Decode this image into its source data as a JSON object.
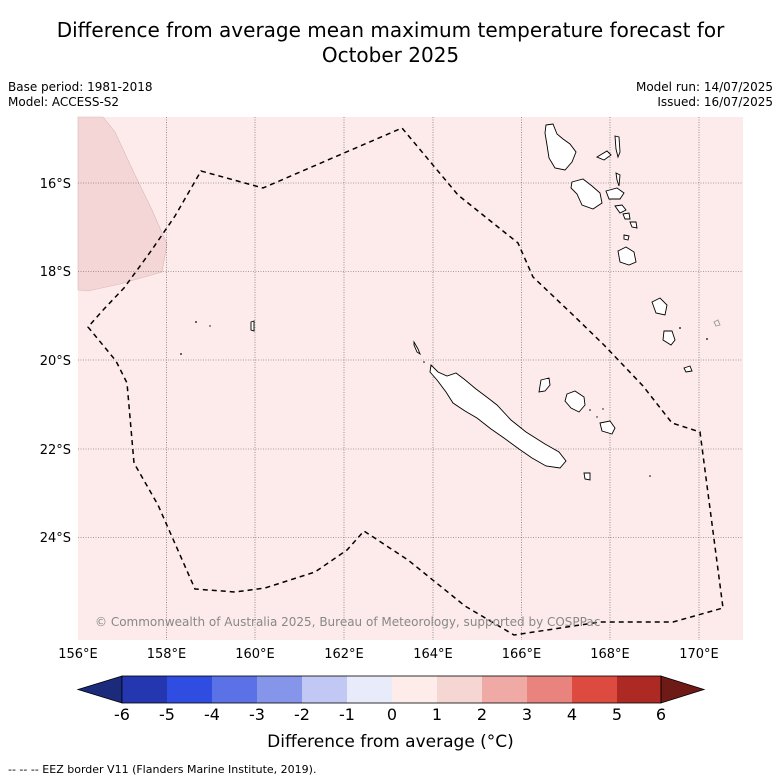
{
  "title_line1": "Difference from average mean maximum temperature forecast for",
  "title_line2": "October 2025",
  "base_period": "Base period: 1981-2018",
  "model": "Model: ACCESS-S2",
  "model_run": "Model run: 14/07/2025",
  "issued": "Issued: 16/07/2025",
  "copyright": "© Commonwealth of Australia 2025, Bureau of Meteorology, supported by COSPPac",
  "lon_ticks": [
    "156°E",
    "158°E",
    "160°E",
    "162°E",
    "164°E",
    "166°E",
    "168°E",
    "170°E"
  ],
  "lat_ticks": [
    "16°S",
    "18°S",
    "20°S",
    "22°S",
    "24°S"
  ],
  "colorbar": {
    "title": "Difference from average (°C)",
    "tick_labels": [
      "-6",
      "-5",
      "-4",
      "-3",
      "-2",
      "-1",
      "0",
      "1",
      "2",
      "3",
      "4",
      "5",
      "6"
    ],
    "colors": [
      "#1c2a7c",
      "#2437b0",
      "#2f4de0",
      "#5a72e6",
      "#8595ea",
      "#c2c8f4",
      "#e8ebfa",
      "#fdecea",
      "#f6d6d3",
      "#efaaa6",
      "#e8837e",
      "#dc4a40",
      "#ad2a24",
      "#6e1a17"
    ]
  },
  "fill_colors": {
    "ocean": "#fcebea",
    "warmer_patch": "#f3d6d5"
  },
  "footnote": "--  --  -- EEZ border V11 (Flanders Marine Institute, 2019)."
}
